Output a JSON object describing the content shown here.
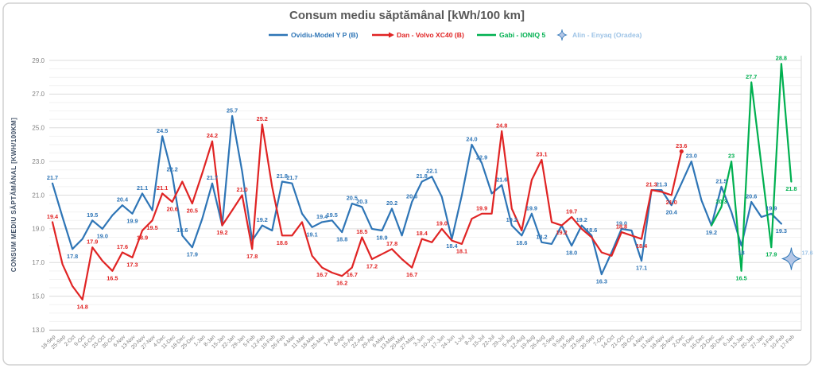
{
  "window": {
    "background": "#FFFFFF"
  },
  "chart_data": {
    "type": "line",
    "title": "Consum mediu săptămânal [kWh/100 km]",
    "ylabel": "CONSUM MEDIU SĂPTĂMÂNAL [KWH/100KM]",
    "xlabel": "",
    "ylim": [
      13.0,
      29.0
    ],
    "ytick_step": 2.0,
    "ytick_labels": [
      "13.0",
      "15.0",
      "17.0",
      "19.0",
      "21.0",
      "23.0",
      "25.0",
      "27.0",
      "29.0"
    ],
    "grid": true,
    "legend_position": "top",
    "categories": [
      "18-Sep",
      "25-Sep",
      "2-Oct",
      "9-Oct",
      "16-Oct",
      "23-Oct",
      "30-Oct",
      "6-Nov",
      "13-Nov",
      "20-Nov",
      "27-Nov",
      "4-Dec",
      "11-Dec",
      "18-Dec",
      "25-Dec",
      "1-Jan",
      "8-Jan",
      "15-Jan",
      "22-Jan",
      "29-Jan",
      "5-Feb",
      "12-Feb",
      "19-Feb",
      "26-Feb",
      "4-Mar",
      "11-Mar",
      "18-Mar",
      "25-Mar",
      "1-Apr",
      "8-Apr",
      "15-Apr",
      "22-Apr",
      "29-Apr",
      "6-May",
      "13-May",
      "20-May",
      "27-May",
      "3-Jun",
      "10-Jun",
      "17-Jun",
      "24-Jun",
      "1-Jul",
      "8-Jul",
      "15-Jul",
      "22-Jul",
      "29-Jul",
      "5-Aug",
      "12-Aug",
      "19-Aug",
      "26-Aug",
      "2-Sep",
      "9-Sep",
      "16-Sep",
      "23-Sep",
      "30-Sep",
      "7-Oct",
      "14-Oct",
      "21-Oct",
      "28-Oct",
      "4-Nov",
      "11-Nov",
      "18-Nov",
      "25-Nov",
      "2-Dec",
      "9-Dec",
      "16-Dec",
      "23-Dec",
      "30-Dec",
      "6-Jan",
      "13-Jan",
      "20-Jan",
      "27-Jan",
      "3-Feb",
      "10-Feb",
      "17-Feb"
    ],
    "series": [
      {
        "name": "Ovidiu-Model Y P (B)",
        "color": "#2E75B6",
        "start_index": 0,
        "values": [
          21.7,
          19.7,
          17.8,
          18.4,
          19.5,
          19.0,
          19.8,
          20.4,
          19.9,
          21.1,
          20.1,
          24.5,
          22.2,
          18.6,
          17.9,
          19.6,
          21.7,
          19.2,
          25.7,
          22.4,
          18.3,
          19.2,
          18.9,
          21.8,
          21.7,
          19.9,
          19.1,
          19.4,
          19.5,
          18.8,
          20.5,
          20.3,
          19.0,
          18.9,
          20.2,
          18.6,
          20.6,
          21.8,
          22.1,
          20.9,
          18.4,
          21.0,
          24.0,
          22.9,
          21.1,
          21.6,
          19.2,
          18.6,
          19.9,
          18.2,
          18.1,
          19.2,
          18.0,
          19.2,
          18.6,
          16.3,
          17.6,
          19.0,
          18.9,
          17.1,
          21.3,
          21.3,
          20.4,
          21.7,
          23.0,
          20.7,
          19.2,
          21.5,
          20.0,
          18.0,
          20.6,
          19.7,
          19.9,
          19.3,
          null
        ],
        "unlabeled": [
          1,
          3,
          6,
          10,
          15,
          17,
          19,
          20,
          22,
          25,
          32,
          35,
          39,
          41,
          44,
          50,
          51,
          56,
          58,
          60,
          63,
          65,
          68,
          71
        ],
        "label_overrides": {
          "69": "18"
        }
      },
      {
        "name": "Dan - Volvo XC40 (B)",
        "color": "#E02424",
        "start_index": 0,
        "values": [
          19.4,
          16.9,
          15.6,
          14.8,
          17.9,
          17.1,
          16.5,
          17.6,
          17.3,
          18.9,
          19.5,
          21.1,
          20.6,
          21.8,
          20.5,
          22.3,
          24.2,
          19.2,
          20.1,
          21.0,
          17.8,
          25.2,
          21.5,
          18.6,
          18.6,
          19.4,
          17.4,
          16.7,
          16.4,
          16.2,
          16.7,
          18.5,
          17.2,
          17.5,
          17.8,
          17.2,
          16.7,
          18.4,
          18.2,
          19.0,
          18.3,
          18.1,
          19.6,
          19.9,
          19.9,
          24.8,
          20.2,
          18.9,
          21.9,
          23.1,
          19.4,
          19.2,
          19.7,
          19.0,
          18.5,
          17.6,
          17.4,
          18.8,
          18.6,
          18.4,
          21.3,
          21.2,
          21.0,
          23.6
        ],
        "unlabeled": [
          1,
          2,
          5,
          13,
          15,
          18,
          22,
          24,
          25,
          26,
          28,
          33,
          35,
          38,
          40,
          42,
          44,
          46,
          47,
          48,
          50,
          53,
          54,
          55,
          56,
          58,
          61
        ],
        "end_marker": true
      },
      {
        "name": "Gabi - IONIQ 5",
        "color": "#00B050",
        "start_index": 66,
        "values": [
          19.2,
          20.3,
          23.0,
          16.5,
          27.7,
          null,
          17.9,
          28.8,
          21.8
        ],
        "unlabeled": [
          66
        ],
        "label_overrides": {
          "68": "23"
        }
      },
      {
        "name": "Alin - Enyaq (Oradea)",
        "color": "#9DC3E6",
        "marker": "star4",
        "star_fill": "#B4C7E7",
        "star_stroke": "#2E75B6",
        "start_index": 74,
        "values": [
          17.6
        ]
      }
    ]
  }
}
